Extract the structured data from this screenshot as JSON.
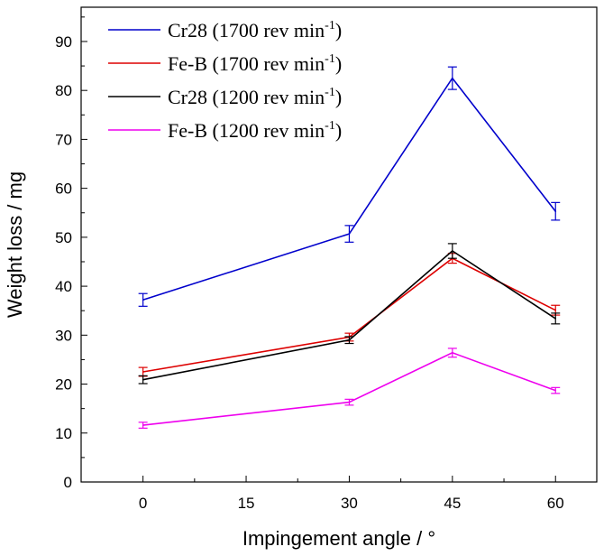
{
  "chart_data": {
    "type": "line",
    "xlabel": "Impingement angle / °",
    "ylabel": "Weight loss / mg",
    "xlim": [
      -9,
      66
    ],
    "ylim": [
      0,
      97
    ],
    "x_ticks": [
      0,
      15,
      30,
      45,
      60
    ],
    "y_ticks": [
      0,
      10,
      20,
      30,
      40,
      50,
      60,
      70,
      80,
      90
    ],
    "x": [
      0,
      30,
      45,
      60
    ],
    "legend_position": "top-left",
    "series": [
      {
        "name": "Cr28 (1700 rev min",
        "sup": "-1",
        "close": ")",
        "color": "#0000cc",
        "values": [
          37.2,
          50.7,
          82.5,
          55.3
        ],
        "errors": [
          1.3,
          1.7,
          2.3,
          1.8
        ]
      },
      {
        "name": "Fe-B (1700 rev min",
        "sup": "-1",
        "close": ")",
        "color": "#dd0000",
        "values": [
          22.5,
          29.6,
          45.7,
          35.1
        ],
        "errors": [
          0.9,
          0.8,
          1.0,
          1.0
        ]
      },
      {
        "name": "Cr28 (1200 rev min",
        "sup": "-1",
        "close": ")",
        "color": "#000000",
        "values": [
          20.9,
          29.0,
          47.2,
          33.4
        ],
        "errors": [
          0.8,
          0.7,
          1.5,
          1.1
        ]
      },
      {
        "name": "Fe-B (1200 rev min",
        "sup": "-1",
        "close": ")",
        "color": "#ee00ee",
        "values": [
          11.6,
          16.3,
          26.4,
          18.7
        ],
        "errors": [
          0.6,
          0.6,
          0.9,
          0.6
        ]
      }
    ]
  }
}
